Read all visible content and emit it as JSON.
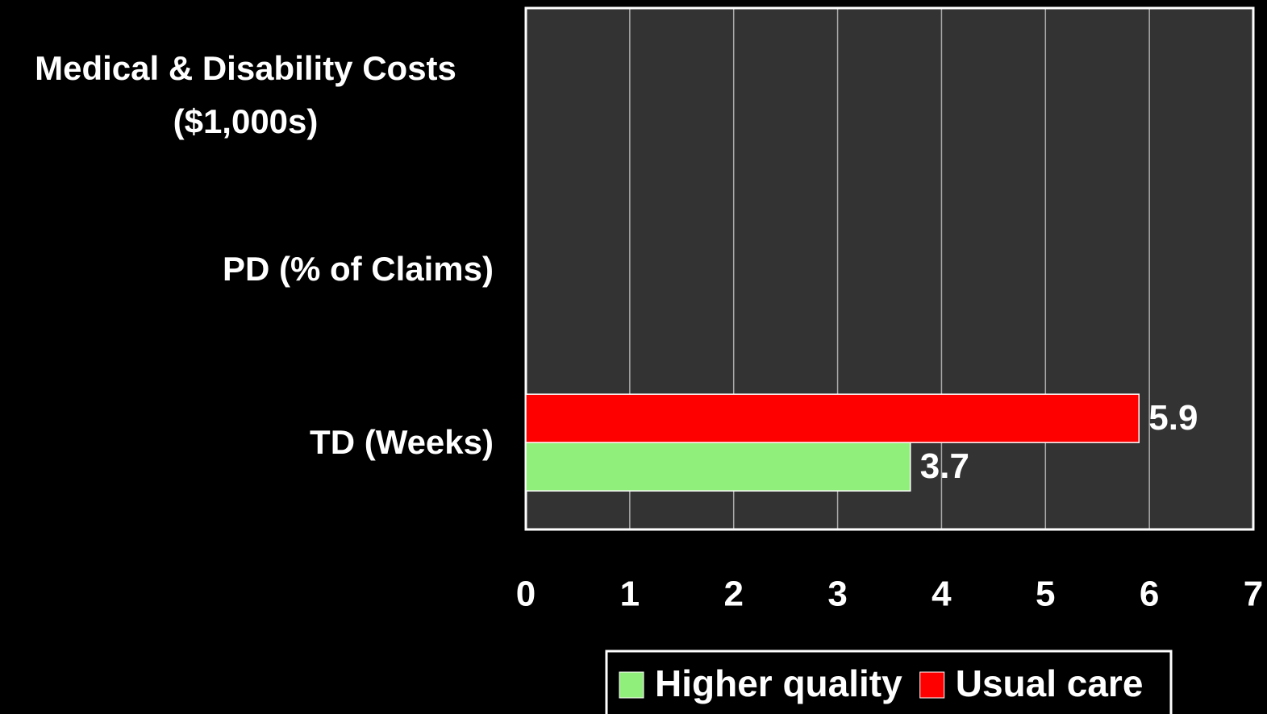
{
  "chart_data": {
    "type": "bar",
    "orientation": "horizontal",
    "categories": [
      "Medical & Disability Costs ($1,000s)",
      "PD (% of Claims)",
      "TD (Weeks)"
    ],
    "series": [
      {
        "name": "Higher quality",
        "color": "#90ee7a",
        "values": [
          null,
          null,
          3.7
        ]
      },
      {
        "name": "Usual care",
        "color": "#ff0000",
        "values": [
          null,
          null,
          5.9
        ]
      }
    ],
    "xlim": [
      0,
      7
    ],
    "xticks": [
      0,
      1,
      2,
      3,
      4,
      5,
      6,
      7
    ],
    "grid": true,
    "legend": "bottom"
  }
}
